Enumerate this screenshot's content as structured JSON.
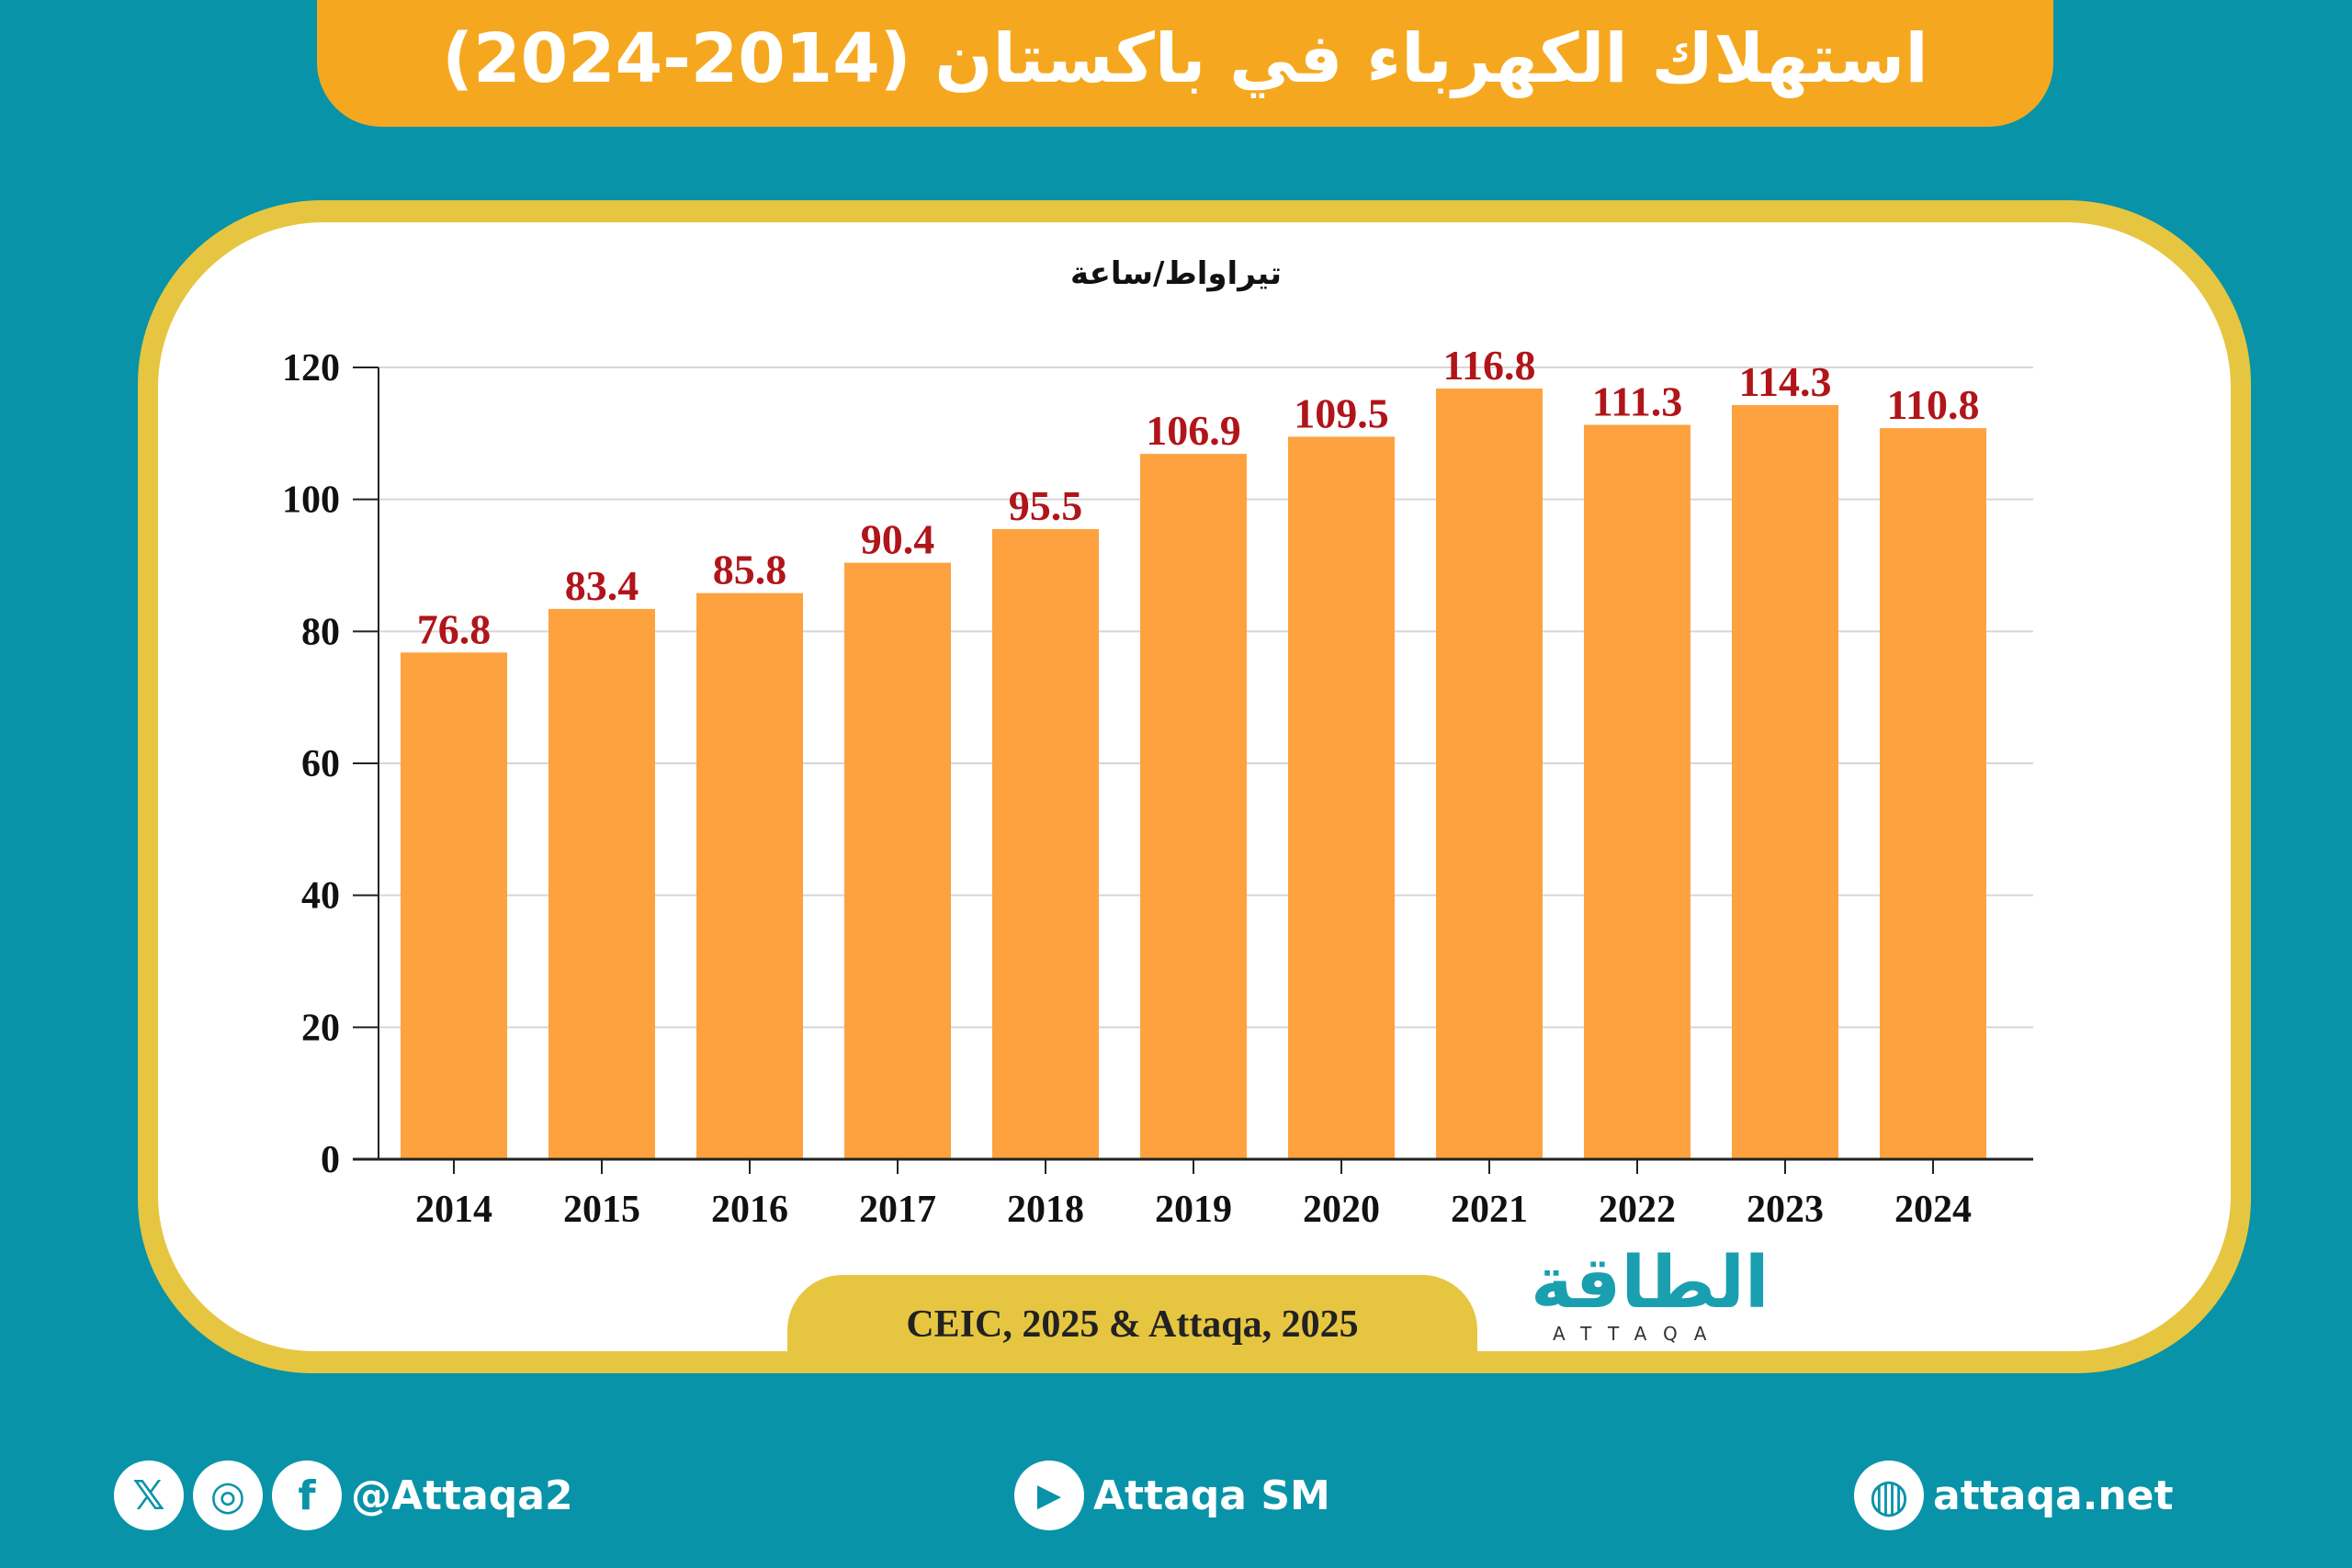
{
  "title": "استهلاك الكهرباء في باكستان (2014-2024)",
  "source": "CEIC, 2025 & Attaqa, 2025",
  "logo": {
    "arabic": "الطاقة",
    "latin": "ATTAQA"
  },
  "footer": {
    "social_handle": "@Attaqa2",
    "youtube": "Attaqa SM",
    "website": "attaqa.net",
    "icons": [
      "x-icon",
      "instagram-icon",
      "facebook-icon",
      "youtube-icon",
      "globe-icon"
    ]
  },
  "colors": {
    "background": "#0893a8",
    "title_bar": "#f5a81f",
    "frame": "#e6c641",
    "bar": "#fda23f",
    "data_label": "#b0151a"
  },
  "chart_data": {
    "type": "bar",
    "title": "استهلاك الكهرباء في باكستان (2014-2024)",
    "ylabel": "تيراواط/ساعة",
    "xlabel": "",
    "categories": [
      "2014",
      "2015",
      "2016",
      "2017",
      "2018",
      "2019",
      "2020",
      "2021",
      "2022",
      "2023",
      "2024"
    ],
    "values": [
      76.8,
      83.4,
      85.8,
      90.4,
      95.5,
      106.9,
      109.5,
      116.8,
      111.3,
      114.3,
      110.8
    ],
    "data_labels": [
      "76.8",
      "83.4",
      "85.8",
      "90.4",
      "95.5",
      "106.9",
      "109.5",
      "116.8",
      "111.3",
      "114.3",
      "110.8"
    ],
    "ylim": [
      0,
      120
    ],
    "yticks": [
      "0",
      "20",
      "40",
      "60",
      "80",
      "100",
      "120"
    ],
    "grid": true
  }
}
